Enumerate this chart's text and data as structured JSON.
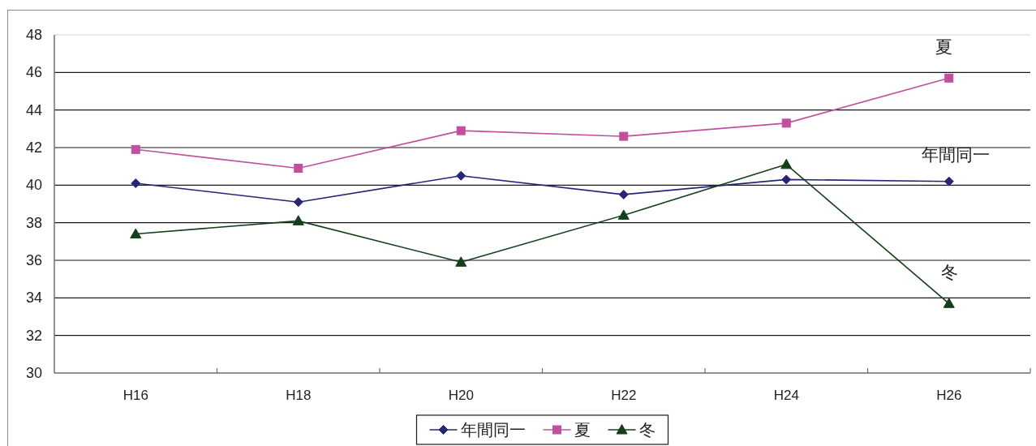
{
  "chart_data": {
    "type": "line",
    "categories": [
      "H16",
      "H18",
      "H20",
      "H22",
      "H24",
      "H26"
    ],
    "series": [
      {
        "name": "年間同一",
        "color": "#262679",
        "marker": "diamond",
        "values": [
          40.1,
          39.1,
          40.5,
          39.5,
          40.3,
          40.2
        ]
      },
      {
        "name": "夏",
        "color": "#c0509e",
        "marker": "square",
        "values": [
          41.9,
          40.9,
          42.9,
          42.6,
          43.3,
          45.7
        ]
      },
      {
        "name": "冬",
        "color": "#133f1a",
        "marker": "triangle",
        "values": [
          37.4,
          38.1,
          35.9,
          38.4,
          41.1,
          33.7
        ]
      }
    ],
    "ylim": [
      30,
      48
    ],
    "yticks": [
      30,
      32,
      34,
      36,
      38,
      40,
      42,
      44,
      46,
      48
    ],
    "grid": "y",
    "legend": "bottom",
    "line_style": "solid",
    "annotations": [
      "夏",
      "年間同一",
      "冬"
    ]
  }
}
